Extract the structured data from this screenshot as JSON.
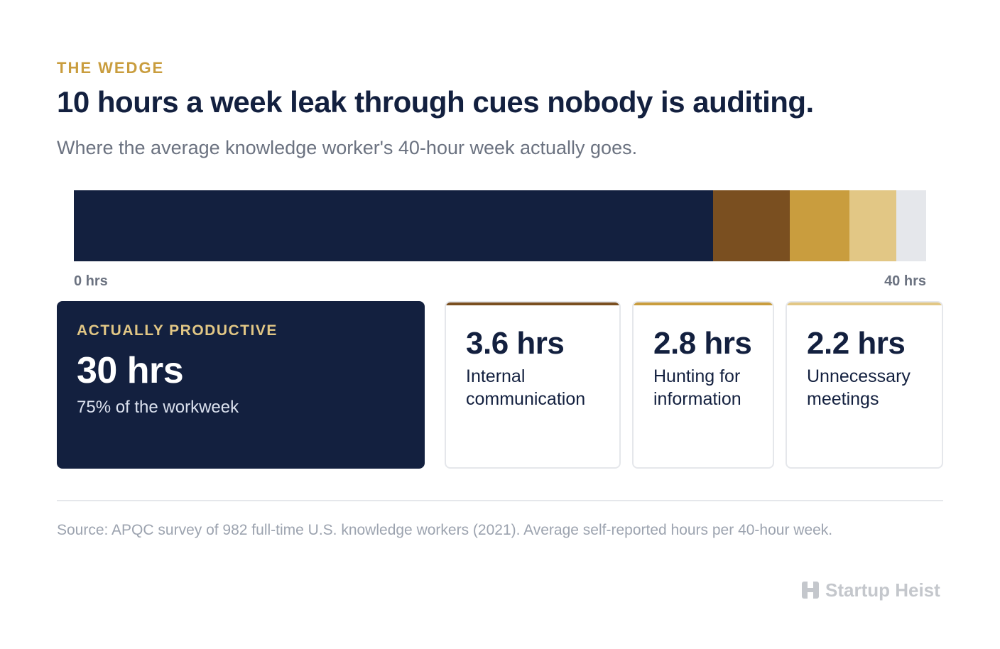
{
  "header": {
    "eyebrow": "THE WEDGE",
    "title": "10 hours a week leak through cues nobody is auditing.",
    "subtitle": "Where the average knowledge worker's 40-hour week actually goes."
  },
  "chart_data": {
    "type": "bar",
    "orientation": "horizontal-stacked",
    "total": 40,
    "unit": "hrs",
    "segments": [
      {
        "name": "Actually productive",
        "value": 30,
        "color": "#13203f"
      },
      {
        "name": "Internal communication",
        "value": 3.6,
        "color": "#7a4f20"
      },
      {
        "name": "Hunting for information",
        "value": 2.8,
        "color": "#c99d3e"
      },
      {
        "name": "Unnecessary meetings",
        "value": 2.2,
        "color": "#e2c785"
      },
      {
        "name": "",
        "value": 1.4,
        "color": "#e5e7eb"
      }
    ],
    "axis": {
      "start_label": "0 hrs",
      "end_label": "40 hrs",
      "xlim": [
        0,
        40
      ]
    }
  },
  "cards": {
    "main": {
      "label": "ACTUALLY PRODUCTIVE",
      "value": "30 hrs",
      "note": "75% of the workweek"
    },
    "leaks": [
      {
        "value": "3.6 hrs",
        "desc": "Internal communication",
        "color": "#7a4f20"
      },
      {
        "value": "2.8 hrs",
        "desc": "Hunting for information",
        "color": "#c99d3e"
      },
      {
        "value": "2.2 hrs",
        "desc": "Unnecessary meetings",
        "color": "#e2c785"
      }
    ]
  },
  "footer": {
    "source": "Source: APQC survey of 982 full-time U.S. knowledge workers (2021). Average self-reported hours per 40-hour week.",
    "brand": "Startup Heist",
    "brand_icon": "building-icon"
  }
}
